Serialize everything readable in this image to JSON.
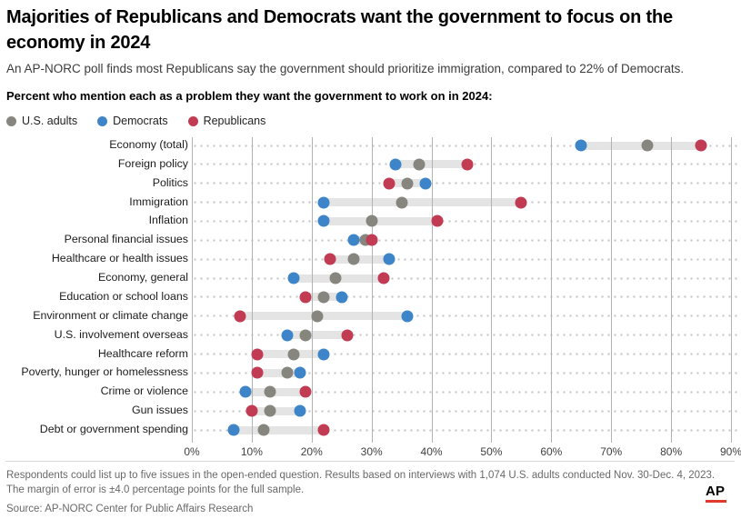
{
  "header": {
    "title": "Majorities of Republicans and Democrats want the government to focus on the economy in 2024",
    "subtitle": "An AP-NORC poll finds most Republicans say the government should prioritize immigration, compared to 22% of Democrats.",
    "prompt": "Percent who mention each as a problem they want the government to work on in 2024:"
  },
  "colors": {
    "adults": "#87867e",
    "democrats": "#3d85c8",
    "republicans": "#c13b53",
    "gridline": "#b2b2b2",
    "connector": "#e4e4e4",
    "ap_red": "#e0392e"
  },
  "legend": [
    {
      "label": "U.S. adults",
      "color": "#87867e"
    },
    {
      "label": "Democrats",
      "color": "#3d85c8"
    },
    {
      "label": "Republicans",
      "color": "#c13b53"
    }
  ],
  "chart_data": {
    "type": "scatter",
    "subtype": "dumbbell-dot-plot",
    "categories": [
      "Economy (total)",
      "Foreign policy",
      "Politics",
      "Immigration",
      "Inflation",
      "Personal financial issues",
      "Healthcare or health issues",
      "Economy, general",
      "Education or school loans",
      "Environment or climate change",
      "U.S. involvement overseas",
      "Healthcare reform",
      "Poverty, hunger or homelessness",
      "Crime or violence",
      "Gun issues",
      "Debt or government spending"
    ],
    "series": [
      {
        "name": "U.S. adults",
        "color": "#87867e",
        "values": [
          76,
          38,
          36,
          35,
          30,
          29,
          27,
          24,
          22,
          21,
          19,
          17,
          16,
          13,
          13,
          12
        ]
      },
      {
        "name": "Democrats",
        "color": "#3d85c8",
        "values": [
          65,
          34,
          39,
          22,
          22,
          27,
          33,
          17,
          25,
          36,
          16,
          22,
          18,
          9,
          18,
          7
        ]
      },
      {
        "name": "Republicans",
        "color": "#c13b53",
        "values": [
          85,
          46,
          33,
          55,
          41,
          30,
          23,
          32,
          19,
          8,
          26,
          11,
          11,
          19,
          10,
          22
        ]
      }
    ],
    "xlabel": "",
    "ylabel": "",
    "xlim": [
      0,
      90
    ],
    "x_ticks": [
      "0%",
      "10%",
      "20%",
      "30%",
      "40%",
      "50%",
      "60%",
      "70%",
      "80%",
      "90%"
    ],
    "grid": true,
    "legend_position": "top"
  },
  "footer": {
    "note": "Respondents could list up to five issues in the open-ended question. Results based on interviews with 1,074 U.S. adults conducted Nov. 30-Dec. 4, 2023. The margin of error is ±4.0 percentage points for the full sample.",
    "source": "Source: AP-NORC Center for Public Affairs Research",
    "logo": "AP"
  }
}
